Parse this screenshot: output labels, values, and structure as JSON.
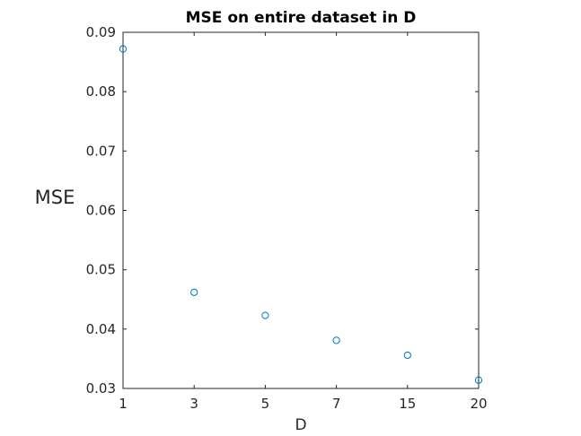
{
  "chart_data": {
    "type": "scatter",
    "title": "MSE on entire dataset in D",
    "xlabel": "D",
    "ylabel": "MSE",
    "categories": [
      "1",
      "3",
      "5",
      "7",
      "15",
      "20"
    ],
    "ylim": [
      0.03,
      0.09
    ],
    "yticks": [
      "0.03",
      "0.04",
      "0.05",
      "0.06",
      "0.07",
      "0.08",
      "0.09"
    ],
    "grid": false,
    "series": [
      {
        "values": [
          0.0872,
          0.0462,
          0.0423,
          0.0381,
          0.0356,
          0.0314
        ]
      }
    ],
    "colors": {
      "marker": "#0072BD",
      "axis": "#262626"
    }
  }
}
